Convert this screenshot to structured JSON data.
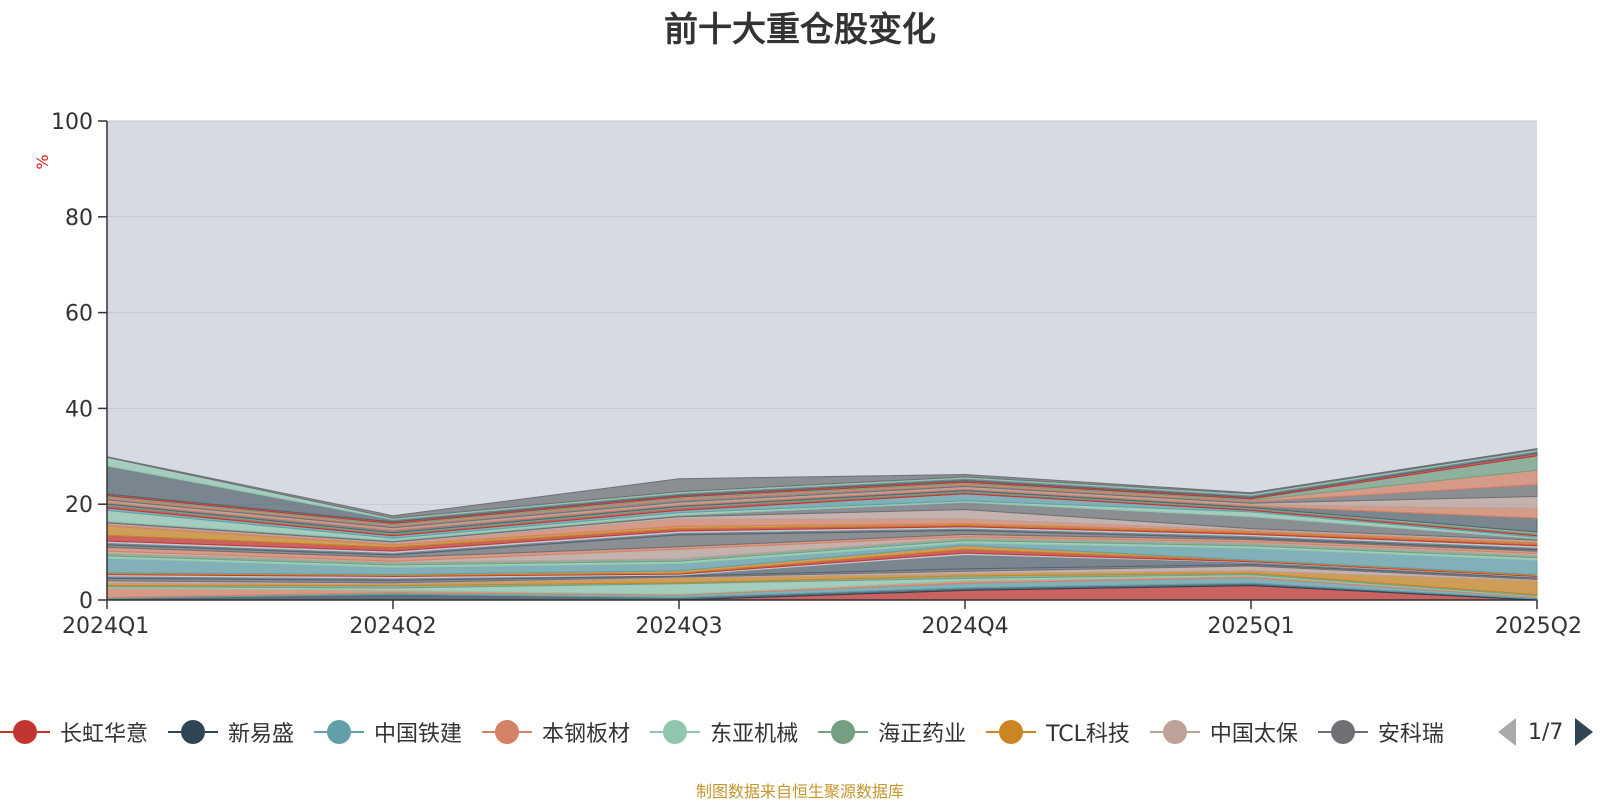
{
  "title": "前十大重仓股变化",
  "source_note": "制图数据来自恒生聚源数据库",
  "legend_pager": "1/7",
  "chart_data": {
    "type": "area",
    "stacked": true,
    "title": "前十大重仓股变化",
    "ylabel": "%",
    "ylim": [
      0,
      100
    ],
    "yticks": [
      0,
      20,
      40,
      60,
      80,
      100
    ],
    "grid": true,
    "categories": [
      "2024Q1",
      "2024Q2",
      "2024Q3",
      "2024Q4",
      "2025Q1",
      "2025Q2"
    ],
    "series": [
      {
        "name": "长虹华意",
        "color": "#c23531",
        "values": [
          0.0,
          0.0,
          0.0,
          2.0,
          3.0,
          0.0
        ]
      },
      {
        "name": "新易盛",
        "color": "#2f4554",
        "values": [
          0.3,
          1.2,
          0.5,
          0.5,
          0.5,
          0.2
        ]
      },
      {
        "name": "中国铁建",
        "color": "#61a0a8",
        "values": [
          0.2,
          0.3,
          0.5,
          1.0,
          1.2,
          0.3
        ]
      },
      {
        "name": "本钢板材",
        "color": "#d48265",
        "values": [
          2.0,
          0.5,
          0.2,
          0.5,
          0.3,
          0.2
        ]
      },
      {
        "name": "东亚机械",
        "color": "#91c7ae",
        "values": [
          0.3,
          0.5,
          2.2,
          0.5,
          0.3,
          0.2
        ]
      },
      {
        "name": "海正药业",
        "color": "#749f83",
        "values": [
          0.2,
          0.5,
          0.2,
          0.5,
          0.3,
          0.2
        ]
      },
      {
        "name": "TCL科技",
        "color": "#ca8622",
        "values": [
          0.5,
          0.3,
          1.0,
          0.5,
          0.5,
          2.9
        ]
      },
      {
        "name": "中国太保",
        "color": "#bda29a",
        "values": [
          0.5,
          0.3,
          0.2,
          0.5,
          1.0,
          0.3
        ]
      },
      {
        "name": "安科瑞",
        "color": "#6e7074",
        "values": [
          0.5,
          0.5,
          0.2,
          0.5,
          0.3,
          0.3
        ]
      }
    ],
    "other_layers": [
      {
        "color": "#546570",
        "values": [
          0.5,
          0.5,
          0.2,
          3.0,
          0.5,
          0.2
        ]
      },
      {
        "color": "#c4ccd3",
        "values": [
          0.3,
          0.3,
          0.2,
          0.3,
          0.1,
          0.1
        ]
      },
      {
        "color": "#c23531",
        "values": [
          0.2,
          0.2,
          0.2,
          0.8,
          0.2,
          0.2
        ]
      },
      {
        "color": "#ca8622",
        "values": [
          0.2,
          0.2,
          0.5,
          0.8,
          0.1,
          0.2
        ]
      },
      {
        "color": "#61a0a8",
        "values": [
          3.0,
          1.5,
          1.5,
          0.5,
          2.5,
          3.0
        ]
      },
      {
        "color": "#91c7ae",
        "values": [
          0.5,
          0.5,
          0.5,
          0.5,
          0.5,
          0.5
        ]
      },
      {
        "color": "#749f83",
        "values": [
          0.5,
          0.5,
          0.5,
          0.5,
          0.5,
          0.5
        ]
      },
      {
        "color": "#bda29a",
        "values": [
          0.5,
          0.3,
          2.0,
          0.3,
          0.3,
          0.4
        ]
      },
      {
        "color": "#d48265",
        "values": [
          0.8,
          0.8,
          0.5,
          0.5,
          0.5,
          0.5
        ]
      },
      {
        "color": "#6e7074",
        "values": [
          0.5,
          0.5,
          2.5,
          0.8,
          0.3,
          0.3
        ]
      },
      {
        "color": "#546570",
        "values": [
          0.5,
          0.5,
          0.5,
          0.5,
          0.5,
          0.5
        ]
      },
      {
        "color": "#c4ccd3",
        "values": [
          0.3,
          0.3,
          0.3,
          0.3,
          0.3,
          0.3
        ]
      },
      {
        "color": "#c23531",
        "values": [
          1.2,
          0.8,
          0.5,
          0.3,
          0.3,
          0.3
        ]
      },
      {
        "color": "#ca8622",
        "values": [
          2.0,
          0.5,
          0.5,
          0.3,
          0.3,
          0.3
        ]
      },
      {
        "color": "#d48265",
        "values": [
          0.3,
          0.3,
          1.5,
          1.0,
          0.3,
          0.3
        ]
      },
      {
        "color": "#bda29a",
        "values": [
          0.3,
          0.3,
          0.5,
          2.0,
          0.3,
          0.3
        ]
      },
      {
        "color": "#6e7074",
        "values": [
          0.3,
          0.3,
          0.3,
          1.5,
          2.5,
          0.3
        ]
      },
      {
        "color": "#91c7ae",
        "values": [
          2.3,
          0.5,
          0.5,
          0.3,
          1.0,
          0.3
        ]
      },
      {
        "color": "#61a0a8",
        "values": [
          0.5,
          0.5,
          0.5,
          1.5,
          0.3,
          0.3
        ]
      },
      {
        "color": "#c23531",
        "values": [
          0.5,
          0.3,
          0.5,
          0.3,
          0.3,
          0.3
        ]
      },
      {
        "color": "#749f83",
        "values": [
          0.3,
          0.3,
          0.3,
          0.3,
          0.3,
          0.5
        ]
      },
      {
        "color": "#546570",
        "values": [
          0.3,
          0.5,
          0.3,
          0.3,
          0.3,
          2.9
        ]
      },
      {
        "color": "#d48265",
        "values": [
          0.3,
          0.3,
          0.3,
          0.3,
          0.3,
          2.0
        ]
      },
      {
        "color": "#bda29a",
        "values": [
          0.3,
          0.3,
          0.3,
          0.3,
          0.3,
          2.5
        ]
      },
      {
        "color": "#6e7074",
        "values": [
          0.3,
          0.3,
          0.5,
          0.3,
          0.3,
          2.5
        ]
      },
      {
        "color": "#d48265",
        "values": [
          0.3,
          0.3,
          0.3,
          0.3,
          0.3,
          3.0
        ]
      },
      {
        "color": "#749f83",
        "values": [
          0.3,
          0.3,
          0.3,
          0.3,
          0.3,
          3.0
        ]
      },
      {
        "color": "#c23531",
        "values": [
          0.3,
          0.3,
          0.3,
          0.3,
          0.3,
          0.5
        ]
      },
      {
        "color": "#546570",
        "values": [
          5.9,
          0.5,
          0.5,
          0.5,
          0.5,
          0.5
        ]
      },
      {
        "color": "#91c7ae",
        "values": [
          1.8,
          0.3,
          0.3,
          0.3,
          0.3,
          0.3
        ]
      },
      {
        "color": "#6e7074",
        "values": [
          0.1,
          0.5,
          2.7,
          0.5,
          0.2,
          0.2
        ]
      }
    ]
  }
}
